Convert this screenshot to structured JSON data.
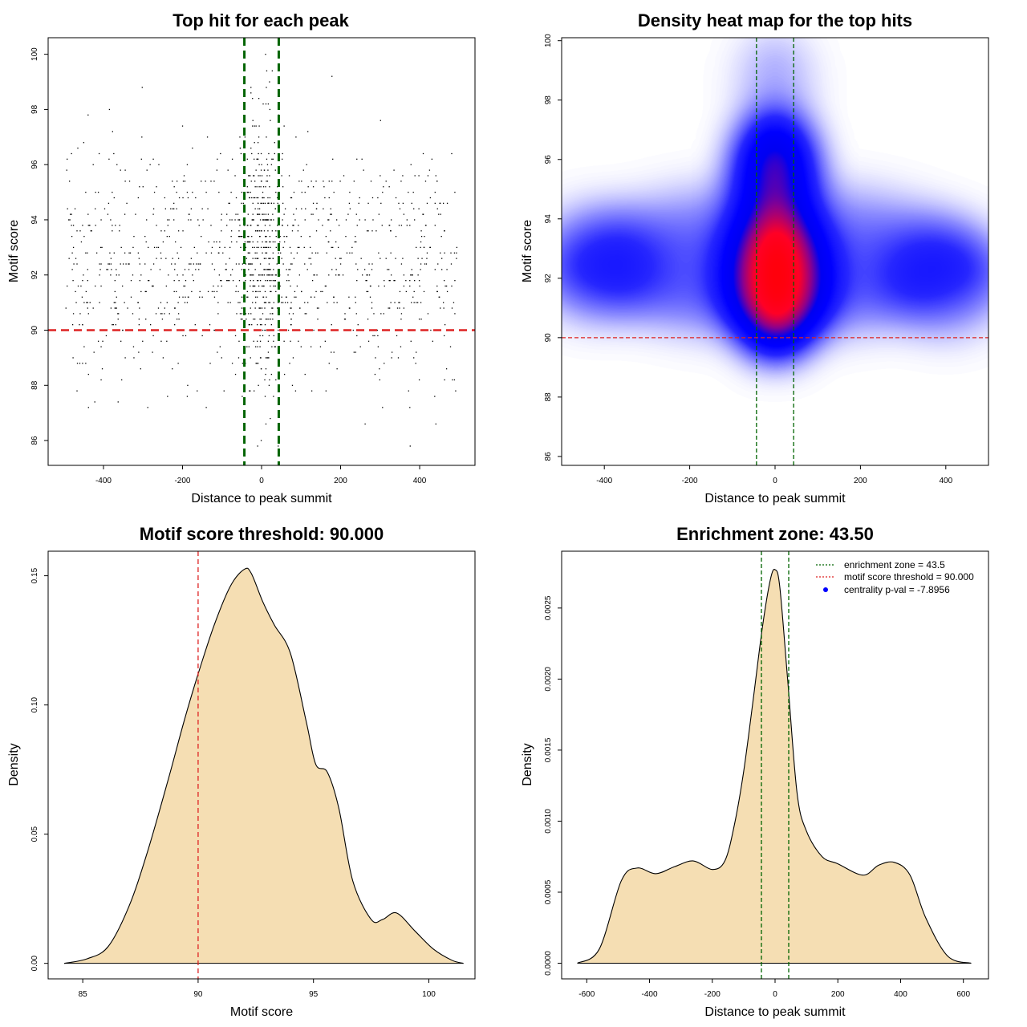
{
  "chart_data": [
    {
      "type": "scatter",
      "title": "Top hit for each peak",
      "xlabel": "Distance to peak summit",
      "ylabel": "Motif score",
      "xlim": [
        -540,
        540
      ],
      "ylim": [
        85.1,
        100.6
      ],
      "xticks": [
        -400,
        -200,
        0,
        200,
        400
      ],
      "yticks": [
        86,
        88,
        90,
        92,
        94,
        96,
        98,
        100
      ],
      "point_count": 1400,
      "point_distribution": "x spans -500 to 500 with a concentration between -50 and 50; y spans about 85.8 to 100, centred near 92.5",
      "reference_lines": {
        "vertical": [
          -43.5,
          43.5
        ],
        "horizontal": [
          90
        ]
      },
      "colors": {
        "points": "#000000",
        "vertical_lines": "#006400",
        "horizontal_line": "#dd2222"
      },
      "grid": false
    },
    {
      "type": "heatmap",
      "title": "Density heat map for the top hits",
      "xlabel": "Distance to peak summit",
      "ylabel": "Motif score",
      "xlim": [
        -500,
        500
      ],
      "ylim": [
        85.7,
        100.1
      ],
      "xticks": [
        -400,
        -200,
        0,
        200,
        400
      ],
      "yticks": [
        86,
        88,
        90,
        92,
        94,
        96,
        98,
        100
      ],
      "color_scale": [
        "#ffffff",
        "#0000ff",
        "#ff0000"
      ],
      "density_peaks": [
        {
          "x": 5,
          "y": 92,
          "level": "max"
        },
        {
          "x": 0,
          "y": 95.9,
          "level": "high"
        },
        {
          "x": -420,
          "y": 92.5,
          "level": "low"
        },
        {
          "x": 400,
          "y": 92,
          "level": "low"
        }
      ],
      "reference_lines": {
        "vertical": [
          -43.5,
          43.5
        ],
        "horizontal": [
          90
        ]
      },
      "colors": {
        "vertical_lines": "#006400",
        "horizontal_line": "#dd2222"
      }
    },
    {
      "type": "area",
      "title": "Motif score threshold: 90.000",
      "xlabel": "Motif score",
      "ylabel": "Density",
      "xlim": [
        83.5,
        102
      ],
      "ylim": [
        -0.006,
        0.1595
      ],
      "xticks": [
        85,
        90,
        95,
        100
      ],
      "yticks": [
        0,
        0.05,
        0.1,
        0.15
      ],
      "ytick_labels": [
        "0.00",
        "0.05",
        "0.10",
        "0.15"
      ],
      "x": [
        84.2,
        85.2,
        86.1,
        87,
        87.8,
        88.7,
        89.4,
        90,
        90.7,
        91.4,
        92,
        92.3,
        92.8,
        93.3,
        94,
        94.7,
        95.1,
        95.6,
        96.1,
        96.7,
        97.5,
        98,
        98.6,
        99.4,
        100.2,
        101,
        101.5
      ],
      "values": [
        0,
        0.0018,
        0.0065,
        0.022,
        0.043,
        0.071,
        0.094,
        0.112,
        0.131,
        0.146,
        0.1525,
        0.151,
        0.14,
        0.131,
        0.12,
        0.093,
        0.077,
        0.074,
        0.06,
        0.032,
        0.017,
        0.017,
        0.0195,
        0.0125,
        0.0055,
        0.0012,
        0
      ],
      "fill": "#f5deb3",
      "reference_lines": {
        "vertical": [
          90
        ]
      },
      "colors": {
        "threshold_line": "#dd2222"
      }
    },
    {
      "type": "area",
      "title": "Enrichment zone: 43.50",
      "xlabel": "Distance to peak summit",
      "ylabel": "Density",
      "xlim": [
        -680,
        680
      ],
      "ylim": [
        -0.00011,
        0.0029
      ],
      "xticks": [
        -600,
        -400,
        -200,
        0,
        200,
        400,
        600
      ],
      "yticks": [
        0,
        0.0005,
        0.001,
        0.0015,
        0.002,
        0.0025
      ],
      "ytick_labels": [
        "0.0000",
        "0.0005",
        "0.0010",
        "0.0015",
        "0.0020",
        "0.0025"
      ],
      "x": [
        -630,
        -560,
        -490,
        -440,
        -380,
        -320,
        -260,
        -200,
        -160,
        -130,
        -100,
        -70,
        -40,
        -15,
        0,
        15,
        40,
        70,
        100,
        150,
        200,
        280,
        330,
        380,
        430,
        480,
        550,
        625
      ],
      "values": [
        0,
        0.0001,
        0.00058,
        0.00067,
        0.00063,
        0.00068,
        0.00072,
        0.00066,
        0.00072,
        0.00097,
        0.00135,
        0.00185,
        0.00237,
        0.0027,
        0.00277,
        0.00265,
        0.002,
        0.0012,
        0.00093,
        0.00075,
        0.0007,
        0.00062,
        0.00069,
        0.00071,
        0.00062,
        0.00032,
        5e-05,
        0
      ],
      "fill": "#f5deb3",
      "reference_lines": {
        "vertical": [
          -43.5,
          43.5
        ]
      },
      "colors": {
        "enrichment_line": "#006400",
        "threshold_legend": "#dd2222",
        "centrality_point": "#0000ff"
      },
      "legend": {
        "placement": "top-right",
        "entries": [
          {
            "label": "enrichment zone = 43.5",
            "style": "dotted-line",
            "color": "#006400"
          },
          {
            "label": "motif score threshold = 90.000",
            "style": "dotted-line",
            "color": "#dd2222"
          },
          {
            "label": "centrality p-val = -7.8956",
            "style": "point",
            "color": "#0000ff"
          }
        ]
      }
    }
  ]
}
